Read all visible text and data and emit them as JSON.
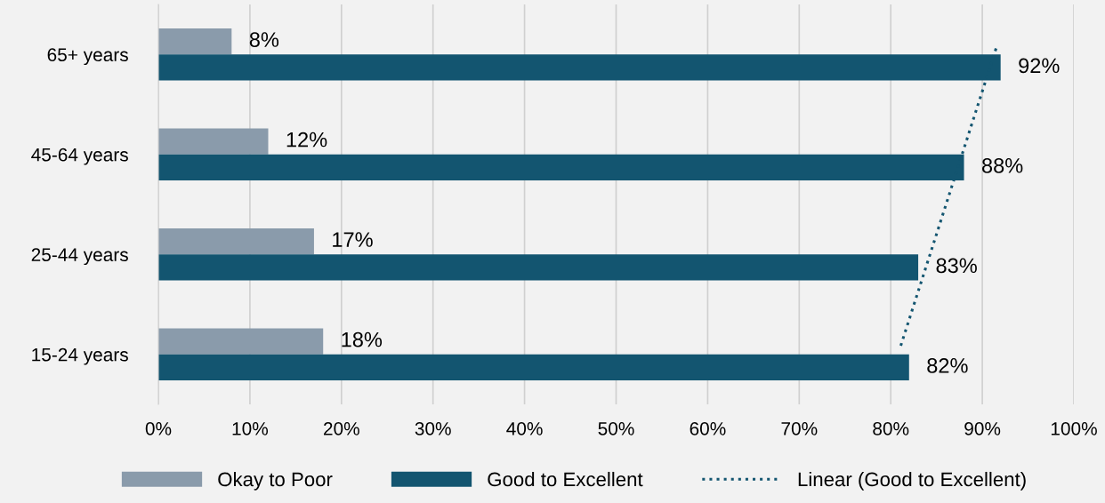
{
  "chart_data": {
    "type": "bar",
    "orientation": "horizontal",
    "categories": [
      "65+ years",
      "45-64 years",
      "25-44 years",
      "15-24 years"
    ],
    "series": [
      {
        "name": "Okay to Poor",
        "color": "#8a9bab",
        "values": [
          8,
          12,
          17,
          18
        ],
        "value_labels": [
          "8%",
          "12%",
          "17%",
          "18%"
        ]
      },
      {
        "name": "Good to Excellent",
        "color": "#135570",
        "values": [
          92,
          88,
          83,
          82
        ],
        "value_labels": [
          "92%",
          "88%",
          "83%",
          "82%"
        ]
      },
      {
        "name": "Linear (Good to Excellent)",
        "type": "line",
        "color": "#135570",
        "line_style": "dotted",
        "values": [
          91.5,
          88,
          84.5,
          81
        ]
      }
    ],
    "xlim": [
      0,
      100
    ],
    "xticks": [
      {
        "value": 0,
        "label": "0%"
      },
      {
        "value": 10,
        "label": "10%"
      },
      {
        "value": 20,
        "label": "20%"
      },
      {
        "value": 30,
        "label": "30%"
      },
      {
        "value": 40,
        "label": "40%"
      },
      {
        "value": 50,
        "label": "50%"
      },
      {
        "value": 60,
        "label": "60%"
      },
      {
        "value": 70,
        "label": "70%"
      },
      {
        "value": 80,
        "label": "80%"
      },
      {
        "value": 90,
        "label": "90%"
      },
      {
        "value": 100,
        "label": "100%"
      }
    ],
    "grid": "x",
    "legend": "bottom"
  }
}
